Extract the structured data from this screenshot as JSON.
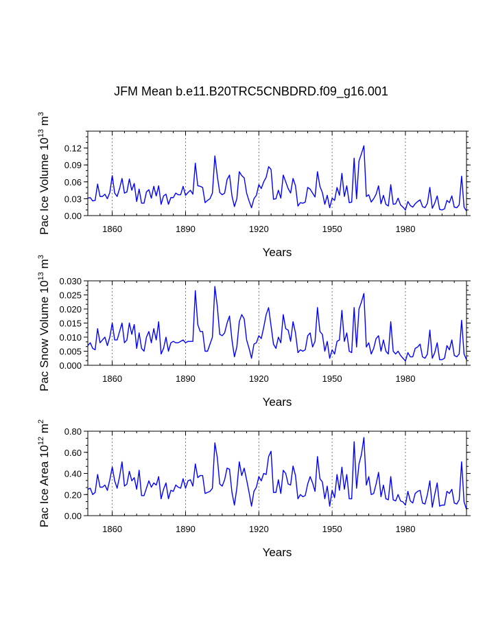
{
  "title": "JFM Mean b.e11.B20TRC5CNBDRD.f09_g16.001",
  "line_color": "#0000ff",
  "chart_data": [
    {
      "type": "line",
      "ylabel_main": "Pac Ice Volume 10",
      "ylabel_exp": "13",
      "ylabel_unit": " m",
      "ylabel_unit_exp": "3",
      "xlabel": "Years",
      "xlim": [
        1850,
        2005
      ],
      "ylim": [
        0,
        0.15
      ],
      "yticks": [
        0,
        0.03,
        0.06,
        0.09,
        0.12
      ],
      "ytick_labels": [
        "0.00",
        "0.03",
        "0.06",
        "0.09",
        "0.12"
      ],
      "xticks": [
        1860,
        1890,
        1920,
        1950,
        1980
      ],
      "xtick_labels": [
        "1860",
        "1890",
        "1920",
        "1950",
        "1980"
      ],
      "x_start": 1850,
      "values": [
        0.031,
        0.032,
        0.026,
        0.027,
        0.056,
        0.034,
        0.034,
        0.038,
        0.03,
        0.041,
        0.071,
        0.04,
        0.034,
        0.048,
        0.066,
        0.04,
        0.042,
        0.065,
        0.045,
        0.057,
        0.025,
        0.047,
        0.022,
        0.022,
        0.042,
        0.046,
        0.031,
        0.052,
        0.035,
        0.053,
        0.02,
        0.035,
        0.038,
        0.02,
        0.032,
        0.032,
        0.04,
        0.037,
        0.037,
        0.052,
        0.036,
        0.041,
        0.045,
        0.038,
        0.093,
        0.053,
        0.052,
        0.05,
        0.023,
        0.027,
        0.03,
        0.04,
        0.106,
        0.07,
        0.041,
        0.037,
        0.04,
        0.064,
        0.072,
        0.035,
        0.016,
        0.03,
        0.078,
        0.071,
        0.067,
        0.04,
        0.026,
        0.014,
        0.03,
        0.036,
        0.055,
        0.048,
        0.06,
        0.068,
        0.087,
        0.082,
        0.029,
        0.03,
        0.045,
        0.031,
        0.072,
        0.06,
        0.048,
        0.04,
        0.066,
        0.053,
        0.017,
        0.023,
        0.022,
        0.024,
        0.05,
        0.047,
        0.04,
        0.033,
        0.078,
        0.052,
        0.041,
        0.02,
        0.036,
        0.014,
        0.031,
        0.027,
        0.05,
        0.036,
        0.075,
        0.034,
        0.053,
        0.023,
        0.024,
        0.102,
        0.03,
        0.097,
        0.11,
        0.124,
        0.034,
        0.037,
        0.024,
        0.03,
        0.038,
        0.053,
        0.021,
        0.036,
        0.02,
        0.017,
        0.055,
        0.02,
        0.021,
        0.031,
        0.019,
        0.015,
        0.01,
        0.025,
        0.018,
        0.015,
        0.021,
        0.025,
        0.028,
        0.016,
        0.014,
        0.022,
        0.05,
        0.013,
        0.022,
        0.035,
        0.011,
        0.01,
        0.012,
        0.027,
        0.023,
        0.035,
        0.015,
        0.014,
        0.019,
        0.07,
        0.015,
        0.008
      ]
    },
    {
      "type": "line",
      "ylabel_main": "Pac Snow Volume 10",
      "ylabel_exp": "13",
      "ylabel_unit": " m",
      "ylabel_unit_exp": "3",
      "xlabel": "Years",
      "xlim": [
        1850,
        2005
      ],
      "ylim": [
        0,
        0.03
      ],
      "yticks": [
        0,
        0.005,
        0.01,
        0.015,
        0.02,
        0.025,
        0.03
      ],
      "ytick_labels": [
        "0.000",
        "0.005",
        "0.010",
        "0.015",
        "0.020",
        "0.025",
        "0.030"
      ],
      "xticks": [
        1860,
        1890,
        1920,
        1950,
        1980
      ],
      "xtick_labels": [
        "1860",
        "1890",
        "1920",
        "1950",
        "1980"
      ],
      "x_start": 1850,
      "values": [
        0.007,
        0.008,
        0.006,
        0.0055,
        0.013,
        0.008,
        0.009,
        0.01,
        0.007,
        0.01,
        0.015,
        0.009,
        0.009,
        0.012,
        0.015,
        0.008,
        0.009,
        0.015,
        0.011,
        0.0145,
        0.006,
        0.0115,
        0.006,
        0.005,
        0.01,
        0.012,
        0.008,
        0.013,
        0.009,
        0.0155,
        0.004,
        0.006,
        0.01,
        0.005,
        0.008,
        0.0085,
        0.008,
        0.008,
        0.0085,
        0.009,
        0.008,
        0.0085,
        0.0085,
        0.0085,
        0.0265,
        0.0145,
        0.012,
        0.012,
        0.005,
        0.005,
        0.0075,
        0.01,
        0.028,
        0.021,
        0.011,
        0.0105,
        0.0115,
        0.015,
        0.0175,
        0.009,
        0.003,
        0.0065,
        0.0155,
        0.018,
        0.0165,
        0.009,
        0.006,
        0.0025,
        0.0075,
        0.008,
        0.0105,
        0.0095,
        0.0135,
        0.018,
        0.0205,
        0.014,
        0.0075,
        0.006,
        0.01,
        0.008,
        0.018,
        0.013,
        0.0125,
        0.0085,
        0.0155,
        0.0115,
        0.0045,
        0.0055,
        0.005,
        0.0055,
        0.0105,
        0.0115,
        0.0065,
        0.0085,
        0.0205,
        0.012,
        0.011,
        0.005,
        0.0085,
        0.0025,
        0.0055,
        0.004,
        0.0085,
        0.009,
        0.0195,
        0.0085,
        0.0115,
        0.005,
        0.0045,
        0.0205,
        0.0065,
        0.02,
        0.0225,
        0.0255,
        0.0065,
        0.008,
        0.004,
        0.006,
        0.0095,
        0.0105,
        0.005,
        0.009,
        0.005,
        0.004,
        0.0155,
        0.005,
        0.004,
        0.005,
        0.0035,
        0.0025,
        0.0015,
        0.0045,
        0.003,
        0.003,
        0.006,
        0.0065,
        0.0075,
        0.003,
        0.0025,
        0.004,
        0.0125,
        0.0025,
        0.0045,
        0.008,
        0.002,
        0.002,
        0.0025,
        0.007,
        0.0055,
        0.009,
        0.0035,
        0.003,
        0.004,
        0.016,
        0.004,
        0.002
      ]
    },
    {
      "type": "line",
      "ylabel_main": "Pac Ice Area 10",
      "ylabel_exp": "12",
      "ylabel_unit": " m",
      "ylabel_unit_exp": "2",
      "xlabel": "Years",
      "xlim": [
        1850,
        2005
      ],
      "ylim": [
        0,
        0.8
      ],
      "yticks": [
        0,
        0.2,
        0.4,
        0.6,
        0.8
      ],
      "ytick_labels": [
        "0.00",
        "0.20",
        "0.40",
        "0.60",
        "0.80"
      ],
      "xticks": [
        1860,
        1890,
        1920,
        1950,
        1980
      ],
      "xtick_labels": [
        "1860",
        "1890",
        "1920",
        "1950",
        "1980"
      ],
      "x_start": 1850,
      "values": [
        0.25,
        0.26,
        0.2,
        0.22,
        0.39,
        0.27,
        0.27,
        0.29,
        0.24,
        0.34,
        0.46,
        0.33,
        0.26,
        0.37,
        0.51,
        0.28,
        0.3,
        0.42,
        0.33,
        0.36,
        0.25,
        0.43,
        0.19,
        0.19,
        0.26,
        0.33,
        0.27,
        0.31,
        0.29,
        0.37,
        0.16,
        0.25,
        0.31,
        0.16,
        0.24,
        0.23,
        0.29,
        0.27,
        0.26,
        0.35,
        0.26,
        0.33,
        0.34,
        0.28,
        0.49,
        0.36,
        0.38,
        0.38,
        0.21,
        0.22,
        0.23,
        0.26,
        0.69,
        0.55,
        0.3,
        0.28,
        0.34,
        0.45,
        0.44,
        0.22,
        0.1,
        0.26,
        0.51,
        0.38,
        0.45,
        0.34,
        0.22,
        0.09,
        0.23,
        0.27,
        0.37,
        0.33,
        0.4,
        0.39,
        0.56,
        0.61,
        0.22,
        0.22,
        0.34,
        0.21,
        0.43,
        0.4,
        0.3,
        0.29,
        0.47,
        0.38,
        0.16,
        0.2,
        0.18,
        0.19,
        0.3,
        0.37,
        0.31,
        0.23,
        0.56,
        0.35,
        0.32,
        0.16,
        0.28,
        0.09,
        0.24,
        0.17,
        0.39,
        0.24,
        0.46,
        0.25,
        0.39,
        0.16,
        0.16,
        0.7,
        0.26,
        0.49,
        0.58,
        0.74,
        0.29,
        0.37,
        0.2,
        0.21,
        0.3,
        0.41,
        0.18,
        0.29,
        0.16,
        0.15,
        0.37,
        0.15,
        0.14,
        0.2,
        0.14,
        0.13,
        0.1,
        0.23,
        0.14,
        0.12,
        0.21,
        0.23,
        0.24,
        0.12,
        0.11,
        0.2,
        0.33,
        0.08,
        0.2,
        0.31,
        0.09,
        0.1,
        0.1,
        0.23,
        0.21,
        0.25,
        0.12,
        0.11,
        0.15,
        0.51,
        0.13,
        0.06
      ]
    }
  ]
}
